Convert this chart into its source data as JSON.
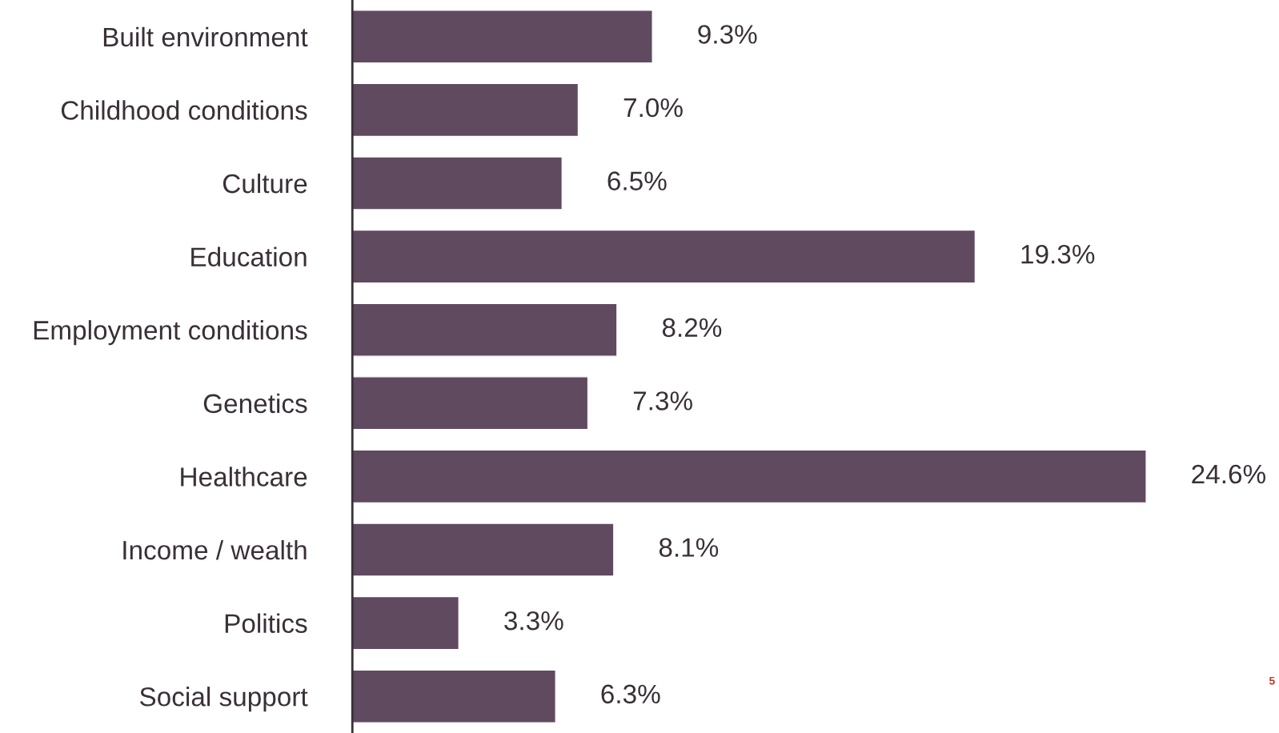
{
  "chart_data": {
    "type": "bar",
    "orientation": "horizontal",
    "categories": [
      "Built environment",
      "Childhood conditions",
      "Culture",
      "Education",
      "Employment conditions",
      "Genetics",
      "Healthcare",
      "Income / wealth",
      "Politics",
      "Social support"
    ],
    "values": [
      9.3,
      7.0,
      6.5,
      19.3,
      8.2,
      7.3,
      24.6,
      8.1,
      3.3,
      6.3
    ],
    "value_labels": [
      "9.3%",
      "7.0%",
      "6.5%",
      "19.3%",
      "8.2%",
      "7.3%",
      "24.6%",
      "8.1%",
      "3.3%",
      "6.3%"
    ],
    "color": "#604a60",
    "tick_labels": "y",
    "grid": false,
    "legend": false,
    "annotations": [
      "5"
    ]
  }
}
